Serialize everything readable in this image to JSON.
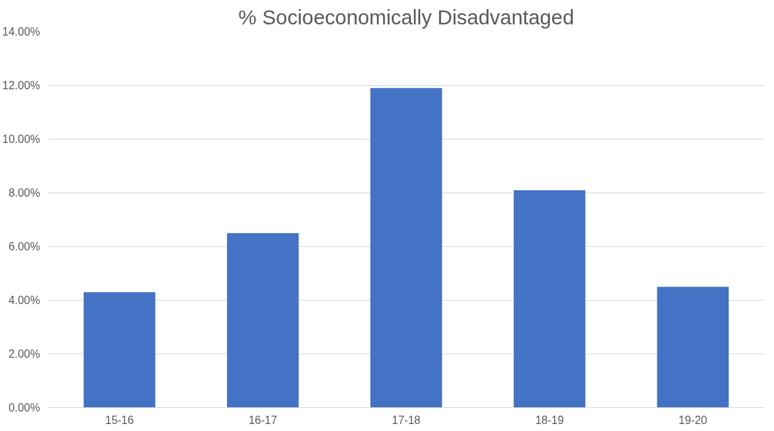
{
  "chart_data": {
    "type": "bar",
    "title": "% Socioeconomically Disadvantaged",
    "categories": [
      "15-16",
      "16-17",
      "17-18",
      "18-19",
      "19-20"
    ],
    "values": [
      4.3,
      6.5,
      11.9,
      8.1,
      4.5
    ],
    "color": "#4472c4",
    "ylim": [
      0,
      14
    ],
    "yticks": [
      {
        "value": 0,
        "label": "0.00%"
      },
      {
        "value": 2,
        "label": "2.00%"
      },
      {
        "value": 4,
        "label": "4.00%"
      },
      {
        "value": 6,
        "label": "6.00%"
      },
      {
        "value": 8,
        "label": "8.00%"
      },
      {
        "value": 10,
        "label": "10.00%"
      },
      {
        "value": 12,
        "label": "12.00%"
      },
      {
        "value": 14,
        "label": "14.00%"
      }
    ],
    "grid": "y"
  }
}
